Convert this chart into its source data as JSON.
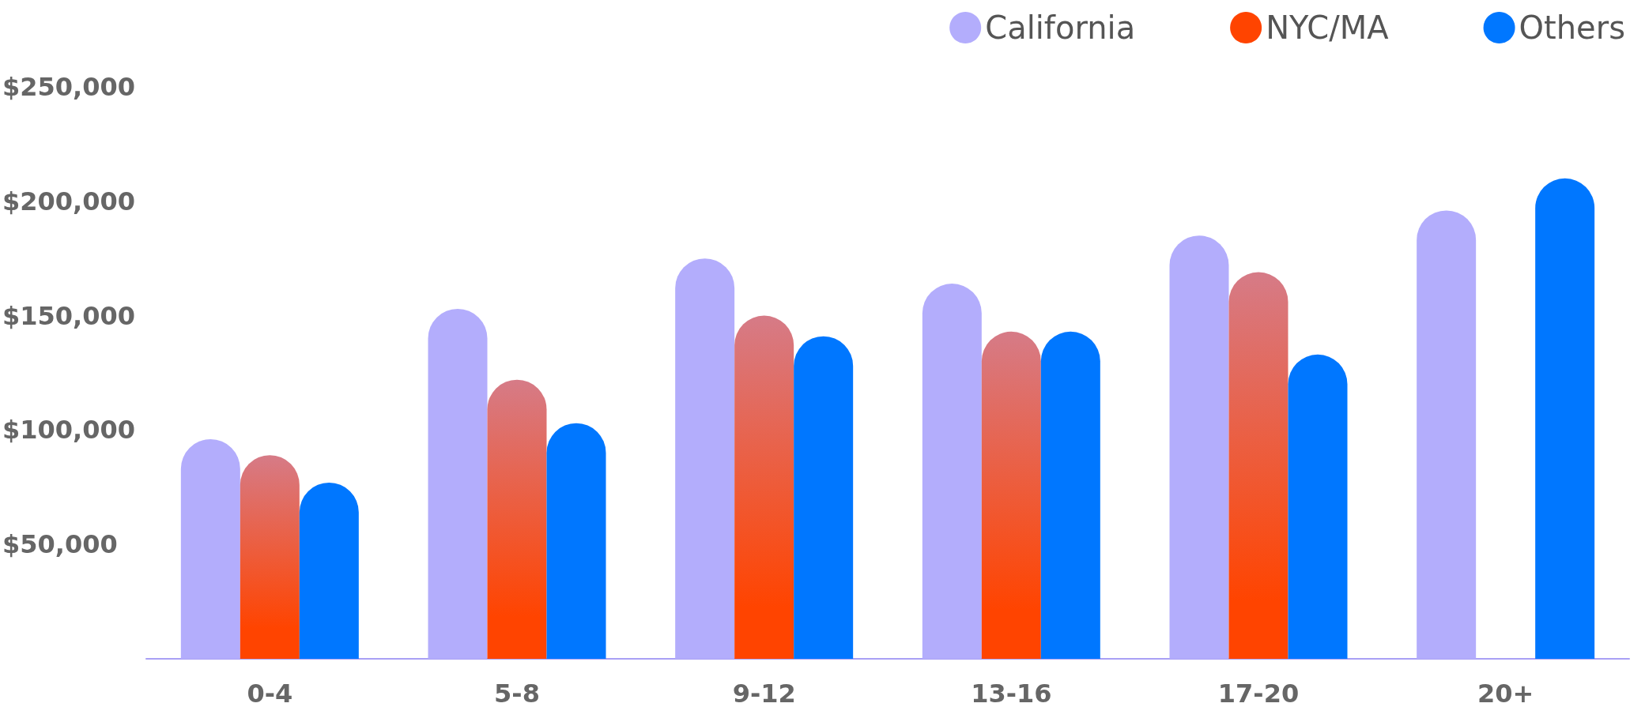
{
  "chart_data": {
    "type": "bar",
    "categories": [
      "0-4",
      "5-8",
      "9-12",
      "13-16",
      "17-20",
      "20+"
    ],
    "series": [
      {
        "name": "California",
        "color": "#b3adfc",
        "values": [
          96000,
          153000,
          175000,
          164000,
          185000,
          196000
        ]
      },
      {
        "name": "NYC/MA",
        "color": "#ff4400",
        "values": [
          89000,
          122000,
          150000,
          143000,
          169000,
          null
        ]
      },
      {
        "name": "Others",
        "color": "#0077ff",
        "values": [
          77000,
          103000,
          141000,
          143000,
          133000,
          210000
        ]
      }
    ],
    "ylim": [
      0,
      250000
    ],
    "yticks": [
      {
        "value": 50000,
        "label": "$50,000"
      },
      {
        "value": 100000,
        "label": "$100,000"
      },
      {
        "value": 150000,
        "label": "$150,000"
      },
      {
        "value": 200000,
        "label": "$200,000"
      },
      {
        "value": 250000,
        "label": "$250,000"
      }
    ],
    "grid": false,
    "legend": "top right"
  }
}
